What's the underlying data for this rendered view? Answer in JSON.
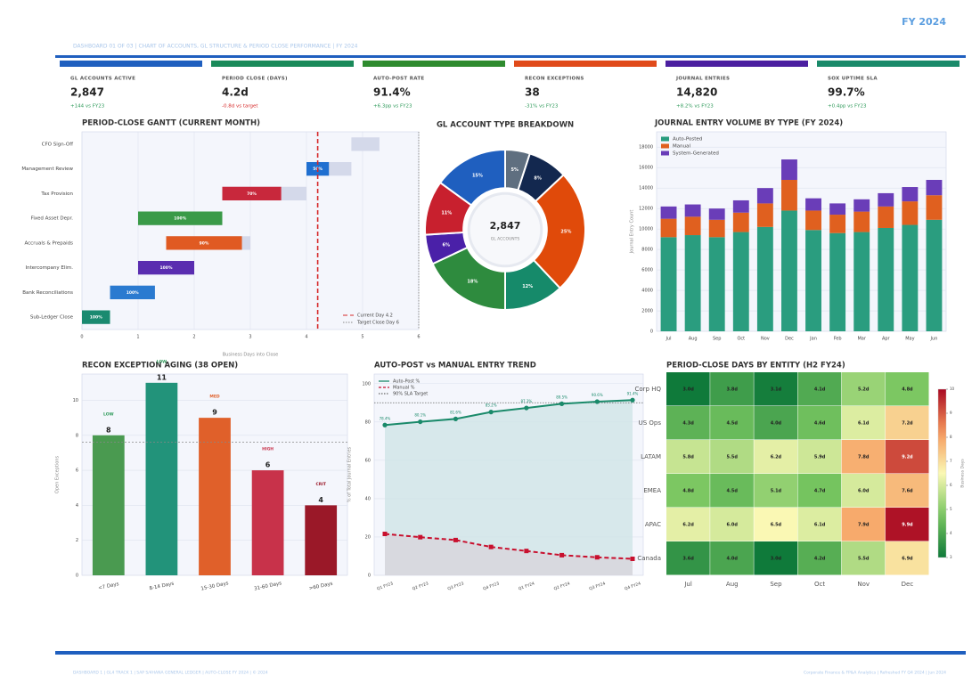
{
  "header": {
    "title": "DASHBOARD 01 OF 03 | CHART OF ACCOUNTS, GL STRUCTURE & PERIOD CLOSE PERFORMANCE | FY 2024",
    "fiscal_year": "FY 2024"
  },
  "kpis": [
    {
      "label": "GL ACCOUNTS ACTIVE",
      "value": "2,847",
      "delta": "+144 vs FY23",
      "color": "#1f5fbf",
      "delta_color": "#2e9a5a"
    },
    {
      "label": "PERIOD CLOSE (DAYS)",
      "value": "4.2d",
      "delta": "-0.8d vs target",
      "color": "#1a8a5a",
      "delta_color": "#d62828"
    },
    {
      "label": "AUTO-POST RATE",
      "value": "91.4%",
      "delta": "+6.3pp vs FY23",
      "color": "#2e8b2e",
      "delta_color": "#2e9a5a"
    },
    {
      "label": "RECON EXCEPTIONS",
      "value": "38",
      "delta": "-31% vs FY23",
      "color": "#e04a1a",
      "delta_color": "#2e9a5a"
    },
    {
      "label": "JOURNAL ENTRIES",
      "value": "14,820",
      "delta": "+8.2% vs FY23",
      "color": "#4b1fa0",
      "delta_color": "#2e9a5a"
    },
    {
      "label": "SOX UPTIME SLA",
      "value": "99.7%",
      "delta": "+0.4pp vs FY23",
      "color": "#1a8a6a",
      "delta_color": "#2e9a5a"
    }
  ],
  "chart_data": [
    {
      "type": "gantt",
      "title": "PERIOD-CLOSE GANTT  (CURRENT MONTH)",
      "xlabel": "Business Days into Close",
      "categories": [
        "CFO Sign-Off",
        "Management Review",
        "Tax Provision",
        "Fixed Asset Depr.",
        "Accruals & Prepaids",
        "Intercompany Elim.",
        "Bank Reconciliations",
        "Sub-Ledger Close"
      ],
      "starts": [
        4.8,
        4.0,
        2.5,
        1.0,
        1.5,
        1.0,
        0.5,
        0.0
      ],
      "durations": [
        0.5,
        0.8,
        1.5,
        1.5,
        1.5,
        1.0,
        0.8,
        0.5
      ],
      "complete": [
        0,
        50,
        70,
        100,
        90,
        100,
        100,
        100
      ],
      "value_labels": [
        null,
        "50%",
        "70%",
        "100%",
        "90%",
        "100%",
        "100%",
        "100%"
      ],
      "colors": [
        "#7a8fc0",
        "#1f6fd0",
        "#c8283c",
        "#3a9a48",
        "#e05a22",
        "#5a2db0",
        "#2a7ad0",
        "#1a8a70"
      ],
      "remaining_color": "#d4d9ea",
      "markers": [
        {
          "label": "Current Day 4.2",
          "value": 4.2,
          "color": "#d62828",
          "style": "dashed"
        },
        {
          "label": "Target Close Day 6",
          "value": 6,
          "color": "#888888",
          "style": "dotted"
        }
      ],
      "xlim": [
        0,
        6
      ],
      "xticks": [
        0,
        1,
        2,
        3,
        4,
        5,
        6
      ],
      "grid": true,
      "legend": "lower right"
    },
    {
      "type": "pie",
      "title": "GL ACCOUNT TYPE BREAKDOWN",
      "center_value": "2,847",
      "center_label": "GL ACCOUNTS",
      "values": [
        5,
        8,
        25,
        12,
        18,
        6,
        11,
        15
      ],
      "value_labels": [
        "5%",
        "8%",
        "25%",
        "12%",
        "18%",
        "6%",
        "11%",
        "15%"
      ],
      "colors": [
        "#5f6f80",
        "#13284f",
        "#e04a0a",
        "#168a6a",
        "#2e8b3e",
        "#4a20a8",
        "#c8202e",
        "#1f5fbf"
      ]
    },
    {
      "type": "bar",
      "stacked": true,
      "title": "JOURNAL ENTRY VOLUME BY TYPE  (FY 2024)",
      "ylabel": "Journal Entry Count",
      "categories": [
        "Jul",
        "Aug",
        "Sep",
        "Oct",
        "Nov",
        "Dec",
        "Jan",
        "Feb",
        "Mar",
        "Apr",
        "May",
        "Jun"
      ],
      "series": [
        {
          "name": "Auto-Posted",
          "color": "#2a9d7f",
          "values": [
            9200,
            9400,
            9200,
            9700,
            10200,
            11800,
            9900,
            9600,
            9700,
            10100,
            10400,
            10900
          ]
        },
        {
          "name": "Manual",
          "color": "#e0601f",
          "values": [
            1800,
            1800,
            1700,
            1900,
            2300,
            3000,
            1900,
            1800,
            2000,
            2100,
            2300,
            2400
          ]
        },
        {
          "name": "System-Generated",
          "color": "#6a3db8",
          "values": [
            1200,
            1200,
            1100,
            1200,
            1500,
            2000,
            1200,
            1100,
            1200,
            1300,
            1400,
            1500
          ]
        }
      ],
      "ylim": [
        0,
        19500
      ],
      "yticks": [
        0,
        2000,
        4000,
        6000,
        8000,
        10000,
        12000,
        14000,
        16000,
        18000
      ],
      "grid": true,
      "legend": "upper left"
    },
    {
      "type": "bar",
      "title": "RECON EXCEPTION AGING  (38 OPEN)",
      "ylabel": "Open Exceptions",
      "categories": [
        "<7 Days",
        "8-14 Days",
        "15-30 Days",
        "31-60 Days",
        ">60 Days"
      ],
      "values": [
        8,
        11,
        9,
        6,
        4
      ],
      "colors": [
        "#4a9a50",
        "#22937a",
        "#e0602a",
        "#c8324a",
        "#9a1828"
      ],
      "annotations": [
        "LOW",
        "LOW",
        "MED",
        "HIGH",
        "CRIT"
      ],
      "annotation_colors": [
        "#2e9a5a",
        "#2e9a5a",
        "#e0602a",
        "#c8324a",
        "#9a1828"
      ],
      "reference_line": 7.6,
      "ylim": [
        0,
        11.5
      ],
      "yticks": [
        0,
        2,
        4,
        6,
        8,
        10
      ],
      "grid": true
    },
    {
      "type": "line",
      "title": "AUTO-POST vs MANUAL ENTRY TREND",
      "ylabel": "% of Total Journal Entries",
      "categories": [
        "Q1 FY23",
        "Q2 FY23",
        "Q3 FY23",
        "Q4 FY23",
        "Q1 FY24",
        "Q2 FY24",
        "Q3 FY24",
        "Q4 FY24"
      ],
      "series": [
        {
          "name": "Auto-Post %",
          "color": "#1a8a6a",
          "marker": "circle",
          "style": "solid",
          "fill": "#cfe5e6",
          "values": [
            78.4,
            80.1,
            81.6,
            85.2,
            87.3,
            89.5,
            90.6,
            91.4
          ],
          "value_labels": [
            "78.4%",
            "80.1%",
            "81.6%",
            "85.2%",
            "87.3%",
            "89.5%",
            "90.6%",
            "91.4%"
          ]
        },
        {
          "name": "Manual %",
          "color": "#c8102e",
          "marker": "square",
          "style": "dashed",
          "fill": "#d8d4dc",
          "values": [
            21.6,
            19.9,
            18.4,
            14.8,
            12.7,
            10.5,
            9.4,
            8.6
          ]
        }
      ],
      "target": {
        "label": "90% SLA Target",
        "value": 90,
        "color": "#666666"
      },
      "ylim": [
        0,
        105
      ],
      "yticks": [
        0,
        20,
        40,
        60,
        80,
        100
      ],
      "grid": true,
      "legend": "upper left"
    },
    {
      "type": "heatmap",
      "title": "PERIOD-CLOSE DAYS BY ENTITY  (H2 FY24)",
      "rows": [
        "Corp HQ",
        "US Ops",
        "LATAM",
        "EMEA",
        "APAC",
        "Canada"
      ],
      "columns": [
        "Jul",
        "Aug",
        "Sep",
        "Oct",
        "Nov",
        "Dec"
      ],
      "values": [
        [
          3.0,
          3.8,
          3.1,
          4.1,
          5.2,
          4.8
        ],
        [
          4.3,
          4.5,
          4.0,
          4.6,
          6.1,
          7.2
        ],
        [
          5.8,
          5.5,
          6.2,
          5.9,
          7.8,
          9.2
        ],
        [
          4.8,
          4.5,
          5.1,
          4.7,
          6.0,
          7.6
        ],
        [
          6.2,
          6.0,
          6.5,
          6.1,
          7.9,
          9.9
        ],
        [
          3.6,
          4.0,
          3.0,
          4.2,
          5.5,
          6.9
        ]
      ],
      "value_labels": [
        [
          "3.0d",
          "3.8d",
          "3.1d",
          "4.1d",
          "5.2d",
          "4.8d"
        ],
        [
          "4.3d",
          "4.5d",
          "4.0d",
          "4.6d",
          "6.1d",
          "7.2d"
        ],
        [
          "5.8d",
          "5.5d",
          "6.2d",
          "5.9d",
          "7.8d",
          "9.2d"
        ],
        [
          "4.8d",
          "4.5d",
          "5.1d",
          "4.7d",
          "6.0d",
          "7.6d"
        ],
        [
          "6.2d",
          "6.0d",
          "6.5d",
          "6.1d",
          "7.9d",
          "9.9d"
        ],
        [
          "3.6d",
          "4.0d",
          "3.0d",
          "4.2d",
          "5.5d",
          "6.9d"
        ]
      ],
      "colorscale": "RdYlGn_r",
      "vlim": [
        3,
        10
      ],
      "cticks": [
        3,
        4,
        5,
        6,
        7,
        8,
        9,
        10
      ],
      "clabel": "Business Days"
    }
  ],
  "footer": {
    "left": "DASHBOARD 1  |  GL4 TRACK 1  |  SAP S/4HANA GENERAL LEDGER  |  AUTO-CLOSE FY 2024  |  © 2024",
    "right": "Corporate Finance & FP&A Analytics  |  Refreshed FY Q4 2024  |  Jun 2024"
  }
}
